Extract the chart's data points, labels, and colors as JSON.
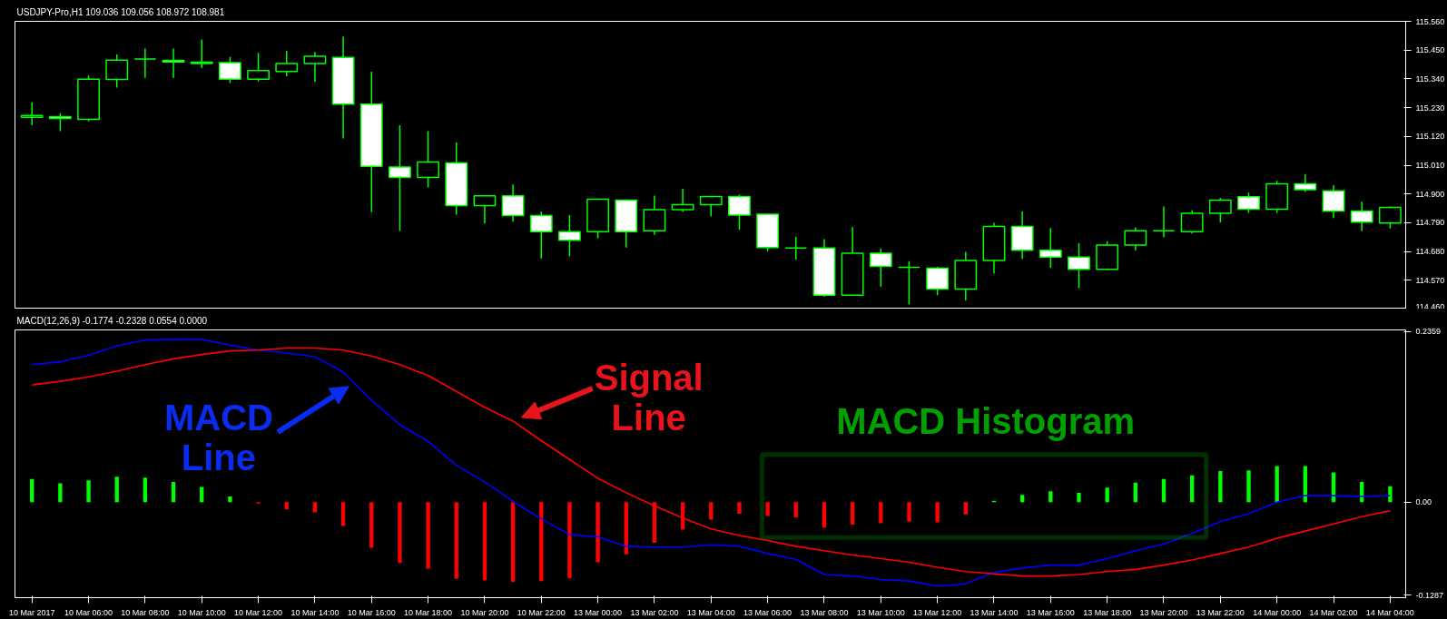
{
  "chart_data": [
    {
      "type": "candlestick",
      "title": "USDJPY-Pro,H1 109.036 109.056 108.972 108.981",
      "categories": [
        null,
        null,
        null,
        null,
        null,
        null,
        null,
        null,
        null,
        null,
        null,
        null,
        null,
        null,
        null,
        null,
        null,
        null,
        null,
        null,
        null,
        null,
        null,
        null,
        null,
        null,
        null,
        null,
        null,
        null,
        null,
        null,
        null,
        null,
        null,
        null,
        null,
        null,
        null,
        null,
        null,
        null,
        null,
        null,
        null,
        null,
        null,
        null,
        null
      ],
      "ohlc": [
        [
          115.193,
          115.25,
          115.163,
          115.2
        ],
        [
          115.196,
          115.209,
          115.14,
          115.189
        ],
        [
          115.185,
          115.353,
          115.177,
          115.339
        ],
        [
          115.338,
          115.433,
          115.307,
          115.412
        ],
        [
          115.416,
          115.456,
          115.344,
          115.416
        ],
        [
          115.411,
          115.456,
          115.344,
          115.405
        ],
        [
          115.404,
          115.491,
          115.381,
          115.399
        ],
        [
          115.402,
          115.424,
          115.324,
          115.339
        ],
        [
          115.339,
          115.439,
          115.33,
          115.372
        ],
        [
          115.368,
          115.447,
          115.35,
          115.399
        ],
        [
          115.399,
          115.443,
          115.328,
          115.426
        ],
        [
          115.422,
          115.502,
          115.112,
          115.243
        ],
        [
          115.243,
          115.367,
          114.831,
          115.006
        ],
        [
          115.003,
          115.163,
          114.758,
          114.963
        ],
        [
          114.963,
          115.14,
          114.925,
          115.022
        ],
        [
          115.019,
          115.097,
          114.821,
          114.856
        ],
        [
          114.856,
          114.893,
          114.787,
          114.893
        ],
        [
          114.893,
          114.936,
          114.794,
          114.817
        ],
        [
          114.817,
          114.833,
          114.653,
          114.756
        ],
        [
          114.756,
          114.819,
          114.662,
          114.723
        ],
        [
          114.756,
          114.882,
          114.73,
          114.88
        ],
        [
          114.876,
          114.88,
          114.695,
          114.756
        ],
        [
          114.759,
          114.894,
          114.744,
          114.84
        ],
        [
          114.84,
          114.92,
          114.831,
          114.859
        ],
        [
          114.859,
          114.89,
          114.814,
          114.89
        ],
        [
          114.89,
          114.897,
          114.764,
          114.819
        ],
        [
          114.823,
          114.823,
          114.681,
          114.695
        ],
        [
          114.693,
          114.736,
          114.649,
          114.693
        ],
        [
          114.693,
          114.727,
          114.507,
          114.513
        ],
        [
          114.513,
          114.773,
          114.513,
          114.673
        ],
        [
          114.673,
          114.691,
          114.546,
          114.623
        ],
        [
          114.62,
          114.643,
          114.478,
          114.62
        ],
        [
          114.616,
          114.622,
          114.513,
          114.536
        ],
        [
          114.536,
          114.679,
          114.493,
          114.646
        ],
        [
          114.646,
          114.79,
          114.596,
          114.776
        ],
        [
          114.776,
          114.833,
          114.651,
          114.685
        ],
        [
          114.685,
          114.77,
          114.618,
          114.659
        ],
        [
          114.659,
          114.712,
          114.54,
          114.612
        ],
        [
          114.612,
          114.719,
          114.609,
          114.705
        ],
        [
          114.705,
          114.772,
          114.685,
          114.759
        ],
        [
          114.759,
          114.852,
          114.734,
          114.759
        ],
        [
          114.756,
          114.837,
          114.749,
          114.826
        ],
        [
          114.826,
          114.885,
          114.791,
          114.876
        ],
        [
          114.889,
          114.905,
          114.828,
          114.842
        ],
        [
          114.842,
          114.95,
          114.828,
          114.939
        ],
        [
          114.939,
          114.976,
          114.908,
          114.916
        ],
        [
          114.912,
          114.934,
          114.808,
          114.835
        ],
        [
          114.835,
          114.87,
          114.758,
          114.792
        ],
        [
          114.789,
          114.852,
          114.768,
          114.849
        ]
      ],
      "color": "#00ff00",
      "ylim": [
        114.46,
        115.56
      ],
      "yticks": [
        {
          "value": 115.56,
          "label": "115.560"
        },
        {
          "value": 115.45,
          "label": "115.450"
        },
        {
          "value": 115.34,
          "label": "115.340"
        },
        {
          "value": 115.23,
          "label": "115.230"
        },
        {
          "value": 115.12,
          "label": "115.120"
        },
        {
          "value": 115.01,
          "label": "115.010"
        },
        {
          "value": 114.9,
          "label": "114.900"
        },
        {
          "value": 114.79,
          "label": "114.790"
        },
        {
          "value": 114.68,
          "label": "114.680"
        },
        {
          "value": 114.57,
          "label": "114.570"
        },
        {
          "value": 114.46,
          "label": "114.460"
        }
      ]
    },
    {
      "type": "bar",
      "title": "MACD(12,26,9) -0.1774 -0.2328 0.0554 0.0000",
      "categories": [
        "10 Mar 2017",
        null,
        "10 Mar 06:00",
        null,
        "10 Mar 08:00",
        null,
        "10 Mar 10:00",
        null,
        "10 Mar 12:00",
        null,
        "10 Mar 14:00",
        null,
        "10 Mar 16:00",
        null,
        "10 Mar 18:00",
        null,
        "10 Mar 20:00",
        null,
        "10 Mar 22:00",
        null,
        "13 Mar 00:00",
        null,
        "13 Mar 02:00",
        null,
        "13 Mar 04:00",
        null,
        "13 Mar 06:00",
        null,
        "13 Mar 08:00",
        null,
        "13 Mar 10:00",
        null,
        "13 Mar 12:00",
        null,
        "13 Mar 14:00",
        null,
        "13 Mar 16:00",
        null,
        "13 Mar 18:00",
        null,
        "13 Mar 20:00",
        null,
        "13 Mar 22:00",
        null,
        "14 Mar 00:00",
        null,
        "14 Mar 02:00",
        null,
        "14 Mar 04:00"
      ],
      "series": [
        {
          "type": "bar",
          "colors": [
            "#00ff00",
            "#00ff00",
            "#00ff00",
            "#00ff00",
            "#00ff00",
            "#00ff00",
            "#00ff00",
            "#00ff00",
            "#ff0000",
            "#ff0000",
            "#ff0000",
            "#ff0000",
            "#ff0000",
            "#ff0000",
            "#ff0000",
            "#ff0000",
            "#ff0000",
            "#ff0000",
            "#ff0000",
            "#ff0000",
            "#ff0000",
            "#ff0000",
            "#ff0000",
            "#ff0000",
            "#ff0000",
            "#ff0000",
            "#ff0000",
            "#ff0000",
            "#ff0000",
            "#ff0000",
            "#ff0000",
            "#ff0000",
            "#ff0000",
            "#ff0000",
            "#00ff00",
            "#00ff00",
            "#00ff00",
            "#00ff00",
            "#00ff00",
            "#00ff00",
            "#00ff00",
            "#00ff00",
            "#00ff00",
            "#00ff00",
            "#00ff00",
            "#00ff00",
            "#00ff00",
            "#00ff00",
            "#00ff00"
          ],
          "values": [
            0.032,
            0.026,
            0.03,
            0.035,
            0.034,
            0.028,
            0.021,
            0.008,
            -0.002,
            -0.01,
            -0.014,
            -0.033,
            -0.063,
            -0.084,
            -0.092,
            -0.106,
            -0.108,
            -0.11,
            -0.109,
            -0.105,
            -0.083,
            -0.072,
            -0.056,
            -0.038,
            -0.024,
            -0.016,
            -0.019,
            -0.021,
            -0.035,
            -0.031,
            -0.029,
            -0.027,
            -0.028,
            -0.017,
            0.002,
            0.01,
            0.015,
            0.013,
            0.02,
            0.027,
            0.032,
            0.037,
            0.043,
            0.044,
            0.05,
            0.05,
            0.041,
            0.028,
            0.022
          ]
        },
        {
          "type": "line",
          "color": "#0000ff",
          "values": [
            0.19,
            0.194,
            0.203,
            0.216,
            0.224,
            0.225,
            0.225,
            0.217,
            0.21,
            0.206,
            0.201,
            0.18,
            0.141,
            0.107,
            0.084,
            0.051,
            0.028,
            0.001,
            -0.023,
            -0.045,
            -0.048,
            -0.061,
            -0.062,
            -0.062,
            -0.059,
            -0.061,
            -0.071,
            -0.079,
            -0.1,
            -0.102,
            -0.107,
            -0.109,
            -0.116,
            -0.113,
            -0.097,
            -0.091,
            -0.087,
            -0.087,
            -0.078,
            -0.067,
            -0.058,
            -0.043,
            -0.027,
            -0.016,
            0.0,
            0.009,
            0.009,
            0.008,
            0.009
          ]
        },
        {
          "type": "line",
          "color": "#ff0000",
          "values": [
            0.162,
            0.167,
            0.173,
            0.181,
            0.19,
            0.198,
            0.204,
            0.209,
            0.21,
            0.213,
            0.213,
            0.21,
            0.202,
            0.19,
            0.175,
            0.153,
            0.131,
            0.112,
            0.085,
            0.059,
            0.033,
            0.013,
            -0.005,
            -0.022,
            -0.037,
            -0.046,
            -0.053,
            -0.061,
            -0.067,
            -0.073,
            -0.078,
            -0.083,
            -0.09,
            -0.096,
            -0.099,
            -0.102,
            -0.102,
            -0.1,
            -0.096,
            -0.093,
            -0.087,
            -0.08,
            -0.071,
            -0.062,
            -0.05,
            -0.04,
            -0.03,
            -0.02,
            -0.012
          ]
        }
      ],
      "ylim": [
        -0.132,
        0.238
      ],
      "yticks": [
        {
          "value": 0.2359,
          "label": "0.2359"
        },
        {
          "value": 0,
          "label": "0.00"
        },
        {
          "value": -0.1287,
          "label": "-0.1287"
        }
      ],
      "annotations": [
        "MACD Line",
        "Signal Line",
        "MACD Histogram"
      ]
    }
  ]
}
